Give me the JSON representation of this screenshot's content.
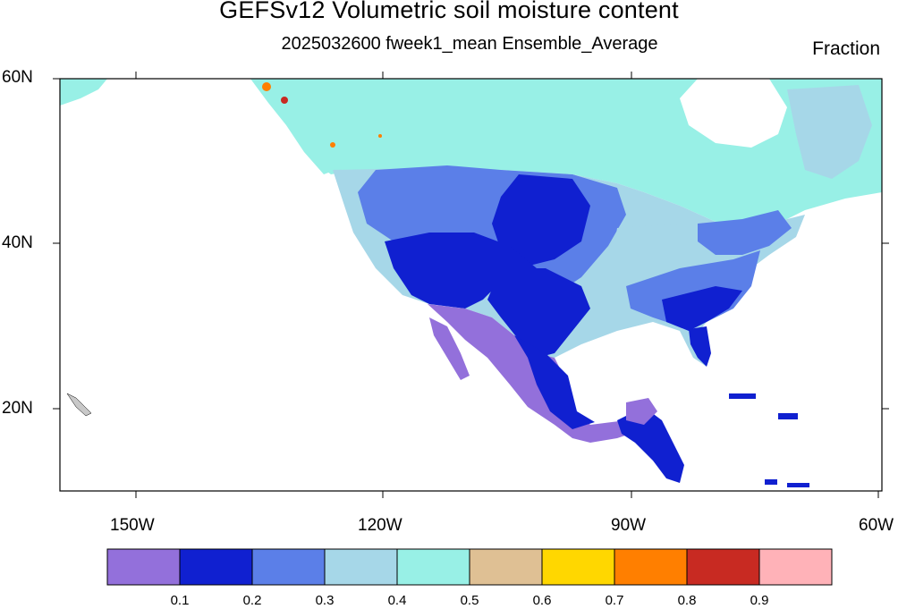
{
  "title": "GEFSv12 Volumetric soil moisture content",
  "subtitle": "2025032600 fweek1_mean Ensemble_Average",
  "units_label": "Fraction",
  "lat_labels": [
    "60N",
    "40N",
    "20N"
  ],
  "lon_labels": [
    "150W",
    "120W",
    "90W",
    "60W"
  ],
  "colorbar": {
    "colors": [
      "#9370db",
      "#1020d0",
      "#5b7fe8",
      "#a6d7e8",
      "#98f0e6",
      "#dfc094",
      "#ffd700",
      "#ff7f00",
      "#c82a22",
      "#ffb2b8"
    ],
    "labels": [
      "0.1",
      "0.2",
      "0.3",
      "0.4",
      "0.5",
      "0.6",
      "0.7",
      "0.8",
      "0.9"
    ]
  },
  "map_colors": {
    "land_outside": "#c8c8c8",
    "border": "#000000"
  }
}
